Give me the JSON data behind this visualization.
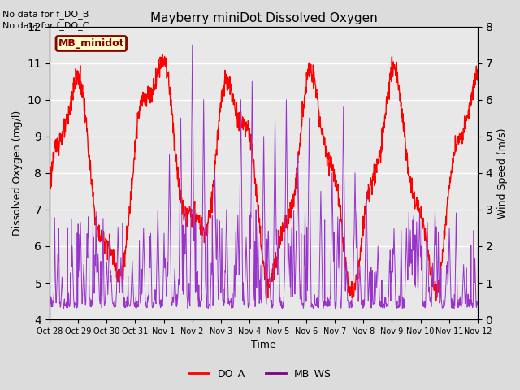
{
  "title": "Mayberry miniDot Dissolved Oxygen",
  "xlabel": "Time",
  "ylabel_left": "Dissolved Oxygen (mg/l)",
  "ylabel_right": "Wind Speed (m/s)",
  "ylim_left": [
    4.0,
    12.0
  ],
  "ylim_right": [
    0.0,
    8.0
  ],
  "text_annotations": [
    "No data for f_DO_B",
    "No data for f_DO_C"
  ],
  "legend_box_label": "MB_minidot",
  "legend_labels": [
    "DO_A",
    "MB_WS"
  ],
  "legend_colors": [
    "red",
    "purple"
  ],
  "do_color": "red",
  "ws_color": "#9933cc",
  "bg_color": "#dcdcdc",
  "plot_bg_color": "#e8e8e8",
  "x_tick_labels": [
    "Oct 28",
    "Oct 29",
    "Oct 30",
    "Oct 31",
    "Nov 1",
    "Nov 2",
    "Nov 3",
    "Nov 4",
    "Nov 5",
    "Nov 6",
    "Nov 7",
    "Nov 8",
    "Nov 9",
    "Nov 10",
    "Nov 11",
    "Nov 12"
  ],
  "n_days": 15
}
